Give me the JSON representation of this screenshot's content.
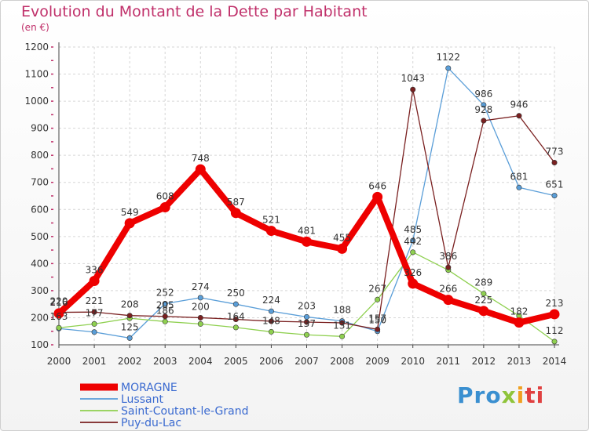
{
  "chart_data": {
    "type": "line",
    "title": "Evolution du Montant de la Dette par Habitant",
    "subtitle": "(en €)",
    "categories": [
      "2000",
      "2001",
      "2002",
      "2003",
      "2004",
      "2005",
      "2006",
      "2007",
      "2008",
      "2009",
      "2010",
      "2011",
      "2012",
      "2013",
      "2014"
    ],
    "yticks": [
      100,
      200,
      300,
      400,
      500,
      600,
      700,
      800,
      900,
      1000,
      1100,
      1200
    ],
    "ylim": [
      100,
      1200
    ],
    "grid": true,
    "legend_position": "bottom-left",
    "series": [
      {
        "name": "MORAGNE",
        "color": "#ee0000",
        "values": [
          216,
          336,
          549,
          608,
          748,
          587,
          521,
          481,
          455,
          646,
          326,
          266,
          225,
          182,
          213
        ],
        "labels": [
          "216",
          "336",
          "549",
          "608",
          "748",
          "587",
          "521",
          "481",
          "455",
          "646",
          "326",
          "266",
          "225",
          "182",
          "213"
        ]
      },
      {
        "name": "Lussant",
        "color": "#5a9ed8",
        "values": [
          160,
          147,
          125,
          252,
          274,
          250,
          224,
          203,
          188,
          150,
          485,
          1122,
          986,
          681,
          651
        ],
        "labels": [
          "",
          "",
          "125",
          "252",
          "274",
          "250",
          "224",
          "203",
          "188",
          "150",
          "485",
          "1122",
          "986",
          "681",
          "651"
        ]
      },
      {
        "name": "Saint-Coutant-le-Grand",
        "color": "#8fd050",
        "values": [
          163,
          177,
          198,
          186,
          177,
          164,
          148,
          137,
          131,
          267,
          442,
          376,
          289,
          207,
          112
        ],
        "labels": [
          "163",
          "177",
          "",
          "186",
          "",
          "164",
          "148",
          "137",
          "131",
          "267",
          "442",
          "",
          "289",
          "",
          "112"
        ]
      },
      {
        "name": "Puy-du-Lac",
        "color": "#7a2020",
        "values": [
          220,
          221,
          208,
          205,
          200,
          194,
          187,
          184,
          181,
          157,
          1043,
          386,
          928,
          946,
          773
        ],
        "labels": [
          "220",
          "221",
          "208",
          "205",
          "200",
          "",
          "",
          "",
          "",
          "157",
          "1043",
          "386",
          "928",
          "946",
          "773"
        ]
      }
    ]
  },
  "logo": {
    "p1": "Pro",
    "p2": "x",
    "p3": "i",
    "p4": "ti"
  }
}
